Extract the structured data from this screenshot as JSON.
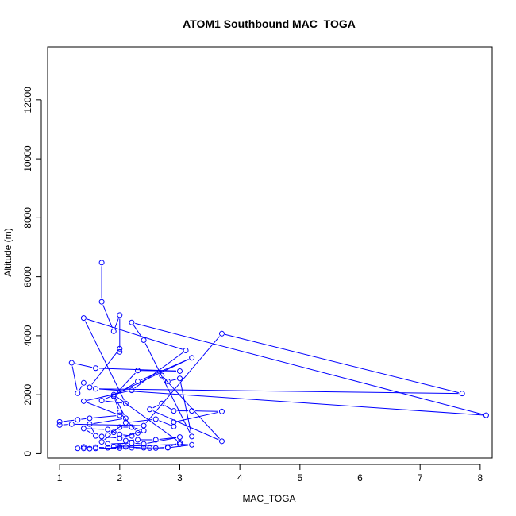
{
  "chart_data": {
    "type": "line",
    "title": "ATOM1 Southbound MAC_TOGA",
    "xlabel": "MAC_TOGA",
    "ylabel": "Altitude (m)",
    "xlim": [
      0.8,
      8.2
    ],
    "ylim": [
      -150,
      13800
    ],
    "x_ticks": [
      1,
      2,
      3,
      4,
      5,
      6,
      7,
      8
    ],
    "x_tick_labels": [
      "1",
      "2",
      "3",
      "4",
      "5",
      "6",
      "7",
      "8"
    ],
    "y_ticks": [
      0,
      2000,
      4000,
      6000,
      8000,
      10000,
      12000
    ],
    "y_tick_labels": [
      "0",
      "2000",
      "4000",
      "6000",
      "8000",
      "10000",
      "12000"
    ],
    "grid": false,
    "series": [
      {
        "color": "#0000ff",
        "marker": "open-circle",
        "points": [
          [
            1.7,
            6480
          ],
          [
            1.7,
            5150
          ],
          [
            1.9,
            4150
          ],
          [
            2.0,
            4700
          ],
          [
            2.0,
            3450
          ],
          [
            2.0,
            3560
          ],
          [
            1.5,
            2250
          ],
          [
            1.4,
            2400
          ],
          [
            1.3,
            2050
          ],
          [
            1.2,
            3080
          ],
          [
            1.6,
            2900
          ],
          [
            3.0,
            2800
          ],
          [
            2.3,
            2820
          ],
          [
            1.9,
            1950
          ],
          [
            2.3,
            2450
          ],
          [
            3.2,
            3250
          ],
          [
            1.7,
            1800
          ],
          [
            2.1,
            1700
          ],
          [
            1.4,
            4600
          ],
          [
            3.1,
            3500
          ],
          [
            2.2,
            2150
          ],
          [
            1.4,
            1780
          ],
          [
            2.0,
            1300
          ],
          [
            1.5,
            1200
          ],
          [
            1.3,
            1150
          ],
          [
            1.0,
            1080
          ],
          [
            1.0,
            970
          ],
          [
            1.2,
            1000
          ],
          [
            2.4,
            950
          ],
          [
            3.7,
            4070
          ],
          [
            7.7,
            2040
          ],
          [
            1.6,
            2200
          ],
          [
            8.1,
            1300
          ],
          [
            2.2,
            4450
          ],
          [
            2.4,
            3850
          ],
          [
            3.2,
            580
          ],
          [
            3.0,
            2550
          ],
          [
            2.8,
            2450
          ],
          [
            2.7,
            2650
          ],
          [
            3.7,
            420
          ],
          [
            2.5,
            1500
          ],
          [
            2.7,
            1700
          ],
          [
            2.9,
            1450
          ],
          [
            3.2,
            1450
          ],
          [
            3.7,
            1430
          ],
          [
            2.9,
            1070
          ],
          [
            2.9,
            920
          ],
          [
            2.6,
            1170
          ],
          [
            2.1,
            1050
          ],
          [
            1.8,
            620
          ],
          [
            1.7,
            580
          ],
          [
            2.0,
            520
          ],
          [
            2.4,
            780
          ],
          [
            2.2,
            900
          ],
          [
            2.0,
            900
          ],
          [
            1.9,
            720
          ],
          [
            1.7,
            400
          ],
          [
            1.8,
            330
          ],
          [
            2.2,
            360
          ],
          [
            2.4,
            330
          ],
          [
            3.0,
            560
          ],
          [
            2.6,
            470
          ],
          [
            2.3,
            470
          ],
          [
            2.1,
            440
          ],
          [
            2.0,
            250
          ],
          [
            1.9,
            240
          ],
          [
            3.0,
            320
          ],
          [
            3.2,
            300
          ],
          [
            2.8,
            200
          ],
          [
            2.5,
            190
          ],
          [
            2.2,
            200
          ],
          [
            2.0,
            190
          ],
          [
            1.6,
            180
          ],
          [
            1.5,
            170
          ],
          [
            1.4,
            180
          ],
          [
            1.3,
            180
          ],
          [
            1.4,
            230
          ],
          [
            1.6,
            220
          ],
          [
            1.8,
            200
          ],
          [
            2.1,
            230
          ],
          [
            2.4,
            200
          ],
          [
            2.6,
            190
          ],
          [
            2.8,
            220
          ],
          [
            3.0,
            380
          ],
          [
            1.9,
            2000
          ],
          [
            2.1,
            1200
          ],
          [
            1.5,
            1000
          ],
          [
            1.6,
            600
          ],
          [
            1.4,
            850
          ],
          [
            1.8,
            820
          ],
          [
            2.0,
            650
          ],
          [
            2.2,
            600
          ],
          [
            2.3,
            700
          ],
          [
            2.0,
            1400
          ],
          [
            1.9,
            1950
          ]
        ]
      }
    ]
  }
}
